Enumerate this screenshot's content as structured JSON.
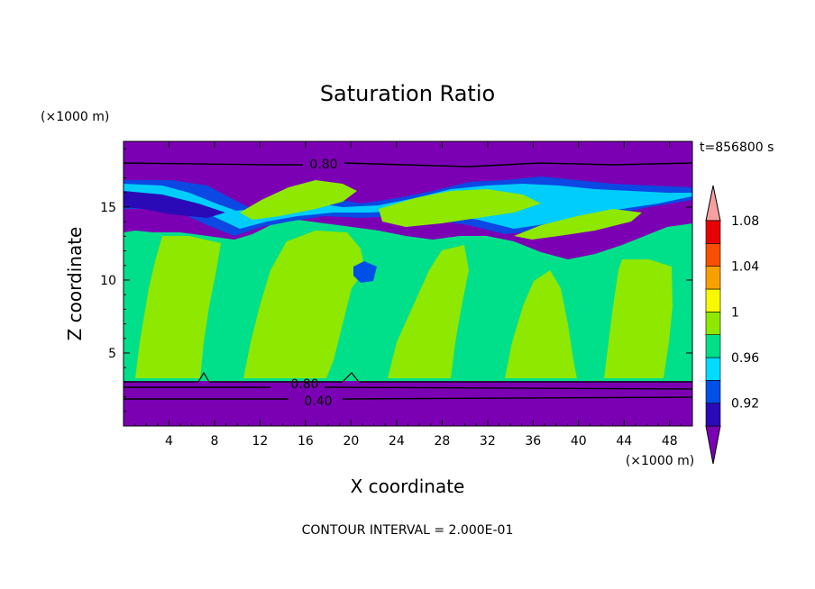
{
  "chart_data": {
    "type": "heatmap",
    "title": "Saturation Ratio",
    "xlabel": "X coordinate",
    "ylabel": "Z coordinate",
    "x_unit": "(×1000 m)",
    "y_unit": "(×1000 m)",
    "time_label": "t=856800 s",
    "footer": "CONTOUR INTERVAL = 2.000E-01",
    "xlim": [
      0,
      50
    ],
    "ylim": [
      0,
      19.5
    ],
    "x_ticks": [
      4,
      8,
      12,
      16,
      20,
      24,
      28,
      32,
      36,
      40,
      44,
      48
    ],
    "y_ticks": [
      5,
      10,
      15
    ],
    "colorbar": {
      "levels": [
        0.92,
        0.94,
        0.96,
        0.98,
        1.0,
        1.02,
        1.04,
        1.06,
        1.08
      ],
      "tick_labels": [
        "0.92",
        "0.96",
        "1",
        "1.04",
        "1.08"
      ],
      "colors": [
        "#7b00b4",
        "#2a0ab6",
        "#0050e8",
        "#00dcff",
        "#00e08a",
        "#8ee800",
        "#f8f800",
        "#f8a000",
        "#f85000",
        "#e80000",
        "#f8a0a0"
      ]
    },
    "contour_labels": [
      {
        "text": "0.80",
        "x": 21,
        "y": 18.3
      },
      {
        "text": "0.80",
        "x": 19.8,
        "y": 2.9
      },
      {
        "text": "0.40",
        "x": 21.3,
        "y": 1.7
      }
    ],
    "regions": [
      {
        "level": "<0.92",
        "description": "upper layer above 14 km and lower layer below 3 km"
      },
      {
        "level": "0.98-1.00",
        "description": "mid troposphere 3-13 km"
      },
      {
        "level": "1.00-1.02",
        "description": "columnar cloud plumes 3-12 km"
      }
    ]
  }
}
